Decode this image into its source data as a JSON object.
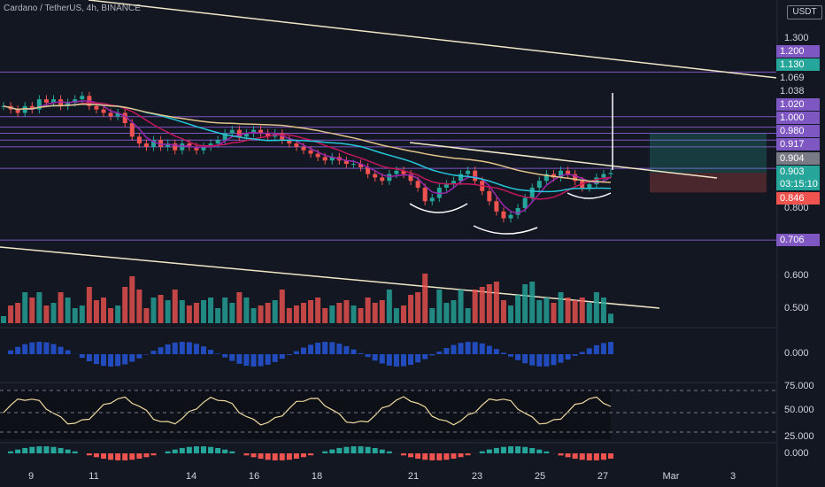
{
  "header": {
    "symbol": "Cardano / TetherUS, 4h, BINANCE",
    "currency": "USDT"
  },
  "colors": {
    "background": "#131722",
    "bull": "#26a69a",
    "bear": "#ef5350",
    "level_line": "#7e57c2",
    "trend_line": "#f0e6c8",
    "ema_fast": "#9c27b0",
    "ema_mid": "#c2185b",
    "ema_slow": "#26c6da",
    "ma_long": "#e0c28a"
  },
  "price_axis": {
    "ticks": [
      "1.300",
      "0.800"
    ],
    "volume_ticks": [
      "0.600",
      "0.500"
    ],
    "osc_tick": "0.000",
    "rsi_ticks": [
      "75.000",
      "50.000",
      "25.000"
    ],
    "macd_tick": "0.000"
  },
  "price_labels": [
    {
      "text": "1.200",
      "bg": "#7e57c2"
    },
    {
      "text": "1.130",
      "bg": "#26a69a"
    },
    {
      "text": "1.069",
      "bg": "#131722"
    },
    {
      "text": "1.038",
      "bg": "#131722"
    },
    {
      "text": "1.020",
      "bg": "#7e57c2"
    },
    {
      "text": "1.000",
      "bg": "#7e57c2"
    },
    {
      "text": "0.980",
      "bg": "#7e57c2"
    },
    {
      "text": "0.917",
      "bg": "#7e57c2"
    },
    {
      "text": "0.904",
      "bg": "#787b86"
    },
    {
      "text": "0.903",
      "bg": "#26a69a"
    },
    {
      "text": "03:15:10",
      "bg": "#26a69a"
    },
    {
      "text": "0.846",
      "bg": "#ef5350"
    },
    {
      "text": "0.706",
      "bg": "#7e57c2"
    }
  ],
  "time_axis": [
    "9",
    "11",
    "14",
    "16",
    "18",
    "21",
    "23",
    "25",
    "27",
    "Mar",
    "3"
  ],
  "chart_data": {
    "type": "candlestick",
    "title": "Cardano / TetherUS, 4h, BINANCE",
    "interval": "4h",
    "y_unit": "USDT",
    "horizontal_levels": [
      1.2,
      1.069,
      1.038,
      1.02,
      1.0,
      0.98,
      0.917,
      0.706
    ],
    "current_price": 0.903,
    "countdown": "03:15:10",
    "trade_box": {
      "target": 1.02,
      "entry": 0.904,
      "stop": 0.846
    },
    "close_series": [
      1.1,
      1.09,
      1.08,
      1.1,
      1.09,
      1.12,
      1.11,
      1.12,
      1.1,
      1.11,
      1.12,
      1.13,
      1.1,
      1.09,
      1.08,
      1.07,
      1.08,
      1.05,
      1.01,
      0.99,
      0.98,
      1.0,
      0.98,
      0.99,
      0.97,
      0.99,
      0.98,
      0.97,
      0.98,
      0.99,
      1.0,
      1.02,
      1.03,
      1.01,
      1.02,
      1.03,
      1.02,
      1.01,
      1.02,
      1.0,
      0.99,
      0.98,
      0.97,
      0.96,
      0.95,
      0.94,
      0.95,
      0.94,
      0.93,
      0.93,
      0.92,
      0.9,
      0.89,
      0.88,
      0.9,
      0.91,
      0.9,
      0.88,
      0.86,
      0.82,
      0.83,
      0.86,
      0.87,
      0.88,
      0.9,
      0.91,
      0.88,
      0.85,
      0.82,
      0.79,
      0.77,
      0.78,
      0.8,
      0.83,
      0.86,
      0.88,
      0.9,
      0.89,
      0.91,
      0.9,
      0.88,
      0.86,
      0.87,
      0.89,
      0.9,
      0.903
    ]
  }
}
